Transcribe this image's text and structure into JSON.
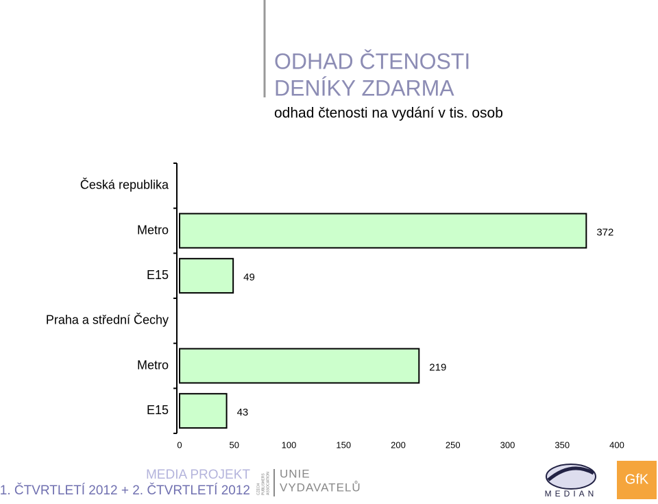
{
  "chart_data": {
    "type": "bar",
    "orientation": "horizontal",
    "title_lines": [
      "ODHAD ČTENOSTI",
      "DENÍKY ZDARMA"
    ],
    "subtitle": "odhad čtenosti na vydání v tis. osob",
    "categories": [
      "Česká republika",
      "Metro",
      "E15",
      "Praha a střední Čechy",
      "Metro",
      "E15"
    ],
    "values": [
      null,
      372,
      49,
      null,
      219,
      43
    ],
    "color": "#ccffcc",
    "xlim": [
      0,
      400
    ],
    "xticks": [
      0,
      50,
      100,
      150,
      200,
      250,
      300,
      350,
      400
    ]
  },
  "footer": {
    "project": "MEDIA PROJEKT",
    "period": "1. ČTVRTLETÍ 2012 + 2. ČTVRTLETÍ 2012",
    "association": [
      "CZECH",
      "PUBLISHERS",
      "ASSOCIATION"
    ],
    "union": [
      "UNIE",
      "VYDAVATELŮ"
    ],
    "median": "MEDIAN",
    "gfk": "GfK"
  }
}
